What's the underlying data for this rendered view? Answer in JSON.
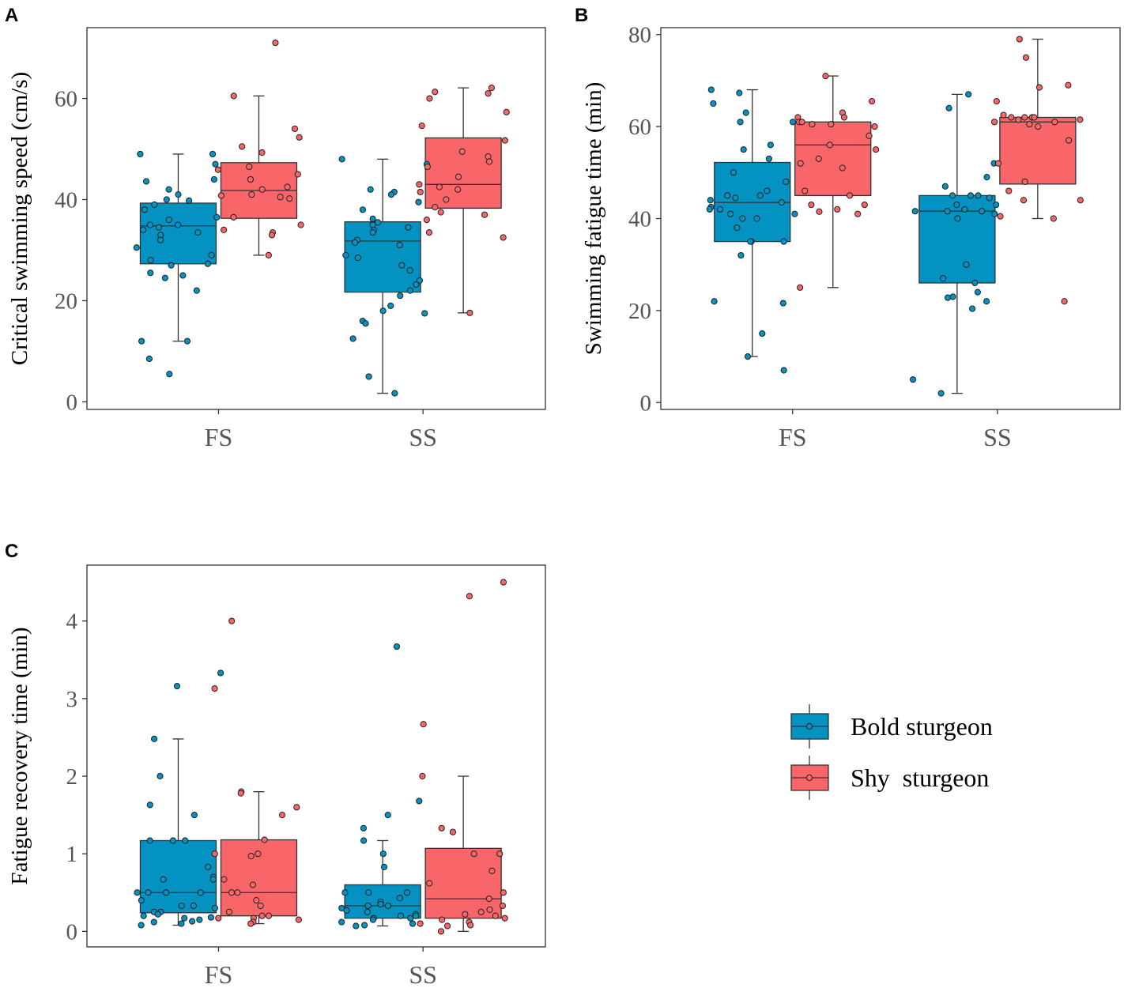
{
  "colors": {
    "bold": "#0492c2",
    "shy": "#f8666a",
    "axis": "#333333",
    "text": "#555555"
  },
  "legend": {
    "items": [
      {
        "key": "bold",
        "label": "Bold sturgeon"
      },
      {
        "key": "shy",
        "label": "Shy  sturgeon"
      }
    ]
  },
  "chart_data": [
    {
      "panel": "A",
      "type": "box",
      "title": "",
      "xlabel": "",
      "ylabel": "Critical swimming speed (cm/s)",
      "categories": [
        "FS",
        "SS"
      ],
      "ylim": [
        -1.5,
        74
      ],
      "yticks": [
        0,
        20,
        40,
        60
      ],
      "series": [
        {
          "name": "Bold sturgeon",
          "key": "bold",
          "boxes": [
            {
              "category": "FS",
              "whisker_low": 12,
              "q1": 27.3,
              "median": 34.8,
              "q3": 39.3,
              "whisker_high": 49,
              "points": [
                49,
                47,
                49,
                42,
                44,
                43.6,
                40,
                41,
                39.8,
                39,
                38,
                36.5,
                36,
                35,
                35,
                34.5,
                34,
                33.5,
                33,
                32,
                30.5,
                29,
                28,
                27.3,
                27,
                25.5,
                25,
                24.5,
                22,
                12,
                12,
                8.5,
                5.5
              ]
            },
            {
              "category": "SS",
              "whisker_low": 1.7,
              "q1": 21.7,
              "median": 31.8,
              "q3": 35.6,
              "whisker_high": 48,
              "points": [
                48,
                47,
                42,
                41.5,
                41,
                39.5,
                38,
                36.2,
                35.5,
                35,
                34.5,
                34,
                33.5,
                32,
                31.5,
                31,
                29,
                28.5,
                27,
                26,
                24,
                23.2,
                22,
                21,
                19,
                18,
                17.5,
                16,
                15.5,
                12.5,
                5,
                1.7
              ]
            }
          ]
        },
        {
          "name": "Shy  sturgeon",
          "key": "shy",
          "boxes": [
            {
              "category": "FS",
              "whisker_low": 29,
              "q1": 36.3,
              "median": 41.8,
              "q3": 47.3,
              "whisker_high": 60.5,
              "points": [
                71,
                60.5,
                54,
                52.3,
                50.5,
                49.3,
                46.5,
                45.9,
                45,
                44,
                42.5,
                42,
                41,
                40.8,
                40.5,
                40.2,
                36.5,
                35,
                34,
                33.5,
                33,
                29
              ]
            },
            {
              "category": "SS",
              "whisker_low": 17.6,
              "q1": 38.3,
              "median": 43,
              "q3": 52.2,
              "whisker_high": 62.1,
              "points": [
                62.1,
                61.3,
                61,
                60,
                57.3,
                54.6,
                51.7,
                49.5,
                48.5,
                47.5,
                46.5,
                44.5,
                43,
                42.5,
                42,
                41.5,
                40,
                38.5,
                37.5,
                37,
                36,
                33.5,
                32.5,
                17.6
              ]
            }
          ]
        }
      ]
    },
    {
      "panel": "B",
      "type": "box",
      "title": "",
      "xlabel": "",
      "ylabel": "Swimming fatigue time (min)",
      "categories": [
        "FS",
        "SS"
      ],
      "ylim": [
        -1.5,
        81.5
      ],
      "yticks": [
        0,
        20,
        40,
        60,
        80
      ],
      "series": [
        {
          "name": "Bold sturgeon",
          "key": "bold",
          "boxes": [
            {
              "category": "FS",
              "whisker_low": 10,
              "q1": 35,
              "median": 43.5,
              "q3": 52.2,
              "whisker_high": 68,
              "points": [
                68,
                67.3,
                65,
                63,
                61,
                61,
                56,
                55,
                53,
                50,
                48,
                46,
                45,
                45,
                44.5,
                44,
                43.5,
                42.5,
                42,
                42,
                41,
                41,
                40,
                40,
                38,
                35,
                35,
                35,
                32,
                22,
                21.6,
                15,
                10,
                7
              ]
            },
            {
              "category": "SS",
              "whisker_low": 2,
              "q1": 26,
              "median": 41.6,
              "q3": 45,
              "whisker_high": 67,
              "points": [
                67,
                64,
                52,
                49,
                47,
                45,
                45,
                45,
                44.5,
                43,
                43,
                42,
                41.6,
                41.6,
                41.6,
                41,
                40,
                30,
                27,
                26,
                24,
                23,
                22.8,
                22,
                20.4,
                5,
                2
              ]
            }
          ]
        },
        {
          "name": "Shy  sturgeon",
          "key": "shy",
          "boxes": [
            {
              "category": "FS",
              "whisker_low": 25,
              "q1": 45,
              "median": 56,
              "q3": 61,
              "whisker_high": 71,
              "points": [
                71,
                65.5,
                63,
                62,
                62,
                61,
                61,
                60.5,
                60.5,
                60,
                58,
                56,
                55,
                53,
                52,
                51,
                46,
                45,
                43,
                43,
                42,
                41.5,
                41,
                25
              ]
            },
            {
              "category": "SS",
              "whisker_low": 40,
              "q1": 47.5,
              "median": 61,
              "q3": 62,
              "whisker_high": 79,
              "points": [
                79,
                75,
                69,
                68.5,
                65.5,
                62.5,
                62,
                62,
                62,
                62,
                61.5,
                61.5,
                61,
                61,
                60.5,
                60,
                57,
                52,
                48,
                46,
                44,
                44,
                40.5,
                40,
                22
              ]
            }
          ]
        }
      ]
    },
    {
      "panel": "C",
      "type": "box",
      "title": "",
      "xlabel": "",
      "ylabel": "Fatigue recovery time (min)",
      "categories": [
        "FS",
        "SS"
      ],
      "ylim": [
        -0.2,
        4.72
      ],
      "yticks": [
        0,
        1,
        2,
        3,
        4
      ],
      "series": [
        {
          "name": "Bold sturgeon",
          "key": "bold",
          "boxes": [
            {
              "category": "FS",
              "whisker_low": 0.08,
              "q1": 0.24,
              "median": 0.5,
              "q3": 1.17,
              "whisker_high": 2.48,
              "points": [
                3.33,
                3.16,
                2.48,
                2,
                1.63,
                1.5,
                1.17,
                1.17,
                1.17,
                0.83,
                0.7,
                0.67,
                0.67,
                0.5,
                0.5,
                0.5,
                0.5,
                0.4,
                0.33,
                0.33,
                0.3,
                0.25,
                0.25,
                0.22,
                0.2,
                0.18,
                0.17,
                0.15,
                0.13,
                0.12,
                0.1,
                0.08
              ]
            },
            {
              "category": "SS",
              "whisker_low": 0.07,
              "q1": 0.17,
              "median": 0.33,
              "q3": 0.6,
              "whisker_high": 1.17,
              "points": [
                3.67,
                1.68,
                1.5,
                1.33,
                1.17,
                1,
                0.83,
                0.5,
                0.5,
                0.5,
                0.43,
                0.38,
                0.35,
                0.33,
                0.33,
                0.3,
                0.27,
                0.25,
                0.22,
                0.2,
                0.2,
                0.17,
                0.17,
                0.15,
                0.12,
                0.1,
                0.08,
                0.07
              ]
            }
          ]
        },
        {
          "name": "Shy  sturgeon",
          "key": "shy",
          "boxes": [
            {
              "category": "FS",
              "whisker_low": 0.1,
              "q1": 0.2,
              "median": 0.5,
              "q3": 1.18,
              "whisker_high": 1.8,
              "points": [
                4,
                3.13,
                1.8,
                1.78,
                1.6,
                1.5,
                1.18,
                1,
                1,
                0.97,
                0.67,
                0.6,
                0.5,
                0.5,
                0.4,
                0.33,
                0.25,
                0.2,
                0.2,
                0.17,
                0.17,
                0.15,
                0.12,
                0.1
              ]
            },
            {
              "category": "SS",
              "whisker_low": 0,
              "q1": 0.17,
              "median": 0.42,
              "q3": 1.07,
              "whisker_high": 2,
              "points": [
                4.5,
                4.32,
                2.67,
                2,
                1.33,
                1.28,
                1,
                1,
                0.78,
                0.62,
                0.5,
                0.42,
                0.33,
                0.28,
                0.25,
                0.22,
                0.2,
                0.17,
                0.15,
                0.12,
                0.1,
                0.08,
                0.07,
                0
              ]
            }
          ]
        }
      ]
    }
  ]
}
